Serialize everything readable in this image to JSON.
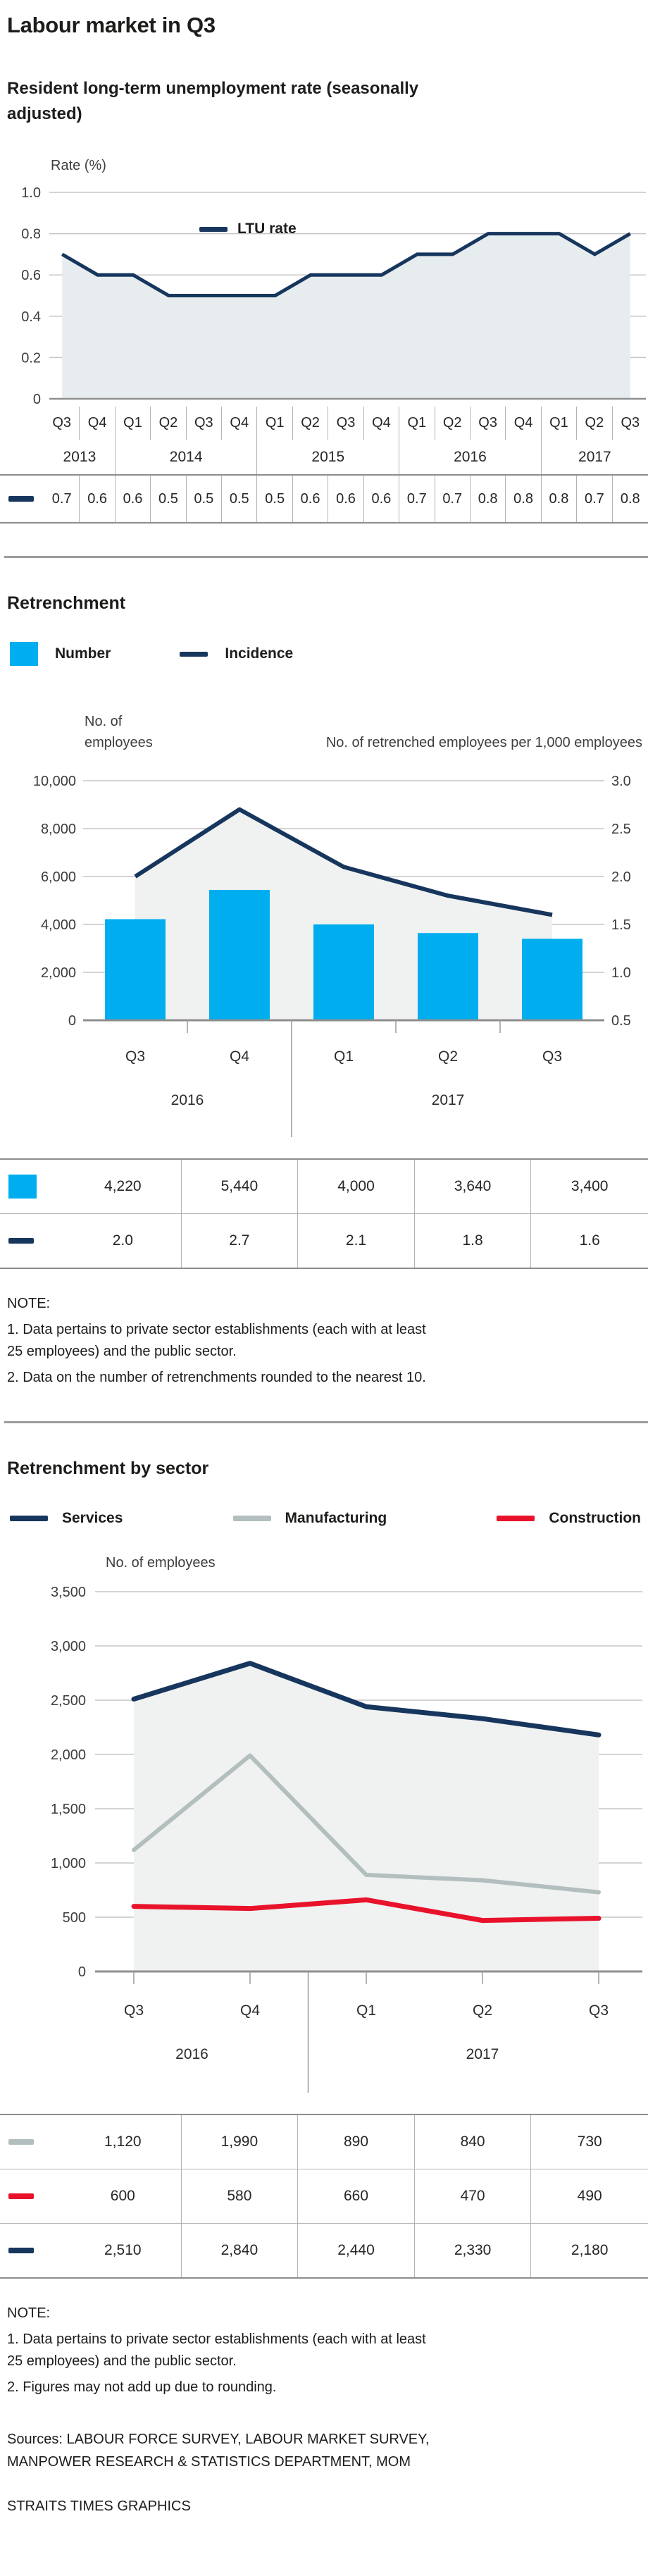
{
  "page": {
    "title": "Labour market in Q3"
  },
  "colors": {
    "navy": "#17365d",
    "cyan": "#00aeef",
    "red": "#e8132b",
    "manufacturing_gray": "#b3bebe",
    "area_fill_blue": "#e7ecef",
    "area_fill_gray": "#f0f1f1",
    "gridline": "#c6c6c6",
    "axis": "#8f8f8f"
  },
  "chart_data": [
    {
      "type": "area",
      "title": "Resident long-term unemployment rate (seasonally adjusted)",
      "ylabel": "Rate (%)",
      "ylim": [
        0,
        1.0
      ],
      "yticks": [
        {
          "label": "1.0",
          "v": 1.0
        },
        {
          "label": "0.8",
          "v": 0.8
        },
        {
          "label": "0.6",
          "v": 0.6
        },
        {
          "label": "0.4",
          "v": 0.4
        },
        {
          "label": "0.2",
          "v": 0.2
        },
        {
          "label": "0",
          "v": 0
        }
      ],
      "grid": true,
      "legend_position": "top-inside",
      "categories": [
        "Q3",
        "Q4",
        "Q1",
        "Q2",
        "Q3",
        "Q4",
        "Q1",
        "Q2",
        "Q3",
        "Q4",
        "Q1",
        "Q2",
        "Q3",
        "Q4",
        "Q1",
        "Q2",
        "Q3"
      ],
      "year_groups": [
        {
          "label": "2013",
          "span": 2
        },
        {
          "label": "2014",
          "span": 4
        },
        {
          "label": "2015",
          "span": 4
        },
        {
          "label": "2016",
          "span": 4
        },
        {
          "label": "2017",
          "span": 3
        }
      ],
      "series": [
        {
          "name": "LTU rate",
          "color": "#17365d",
          "values": [
            0.7,
            0.6,
            0.6,
            0.5,
            0.5,
            0.5,
            0.5,
            0.6,
            0.6,
            0.6,
            0.7,
            0.7,
            0.8,
            0.8,
            0.8,
            0.7,
            0.8
          ],
          "display": [
            "0.7",
            "0.6",
            "0.6",
            "0.5",
            "0.5",
            "0.5",
            "0.5",
            "0.6",
            "0.6",
            "0.6",
            "0.7",
            "0.7",
            "0.8",
            "0.8",
            "0.8",
            "0.7",
            "0.8"
          ]
        }
      ],
      "fill_color": "#e7ecef"
    },
    {
      "type": "bar+line",
      "title": "Retrenchment",
      "ylabel_left": "No. of employees",
      "ylabel_right": "No. of retrenched employees per 1,000 employees",
      "ylim_left": [
        0,
        10000
      ],
      "ylim_right": [
        0.5,
        3.0
      ],
      "yticks_left": [
        {
          "label": "10,000",
          "v": 10000
        },
        {
          "label": "8,000",
          "v": 8000
        },
        {
          "label": "6,000",
          "v": 6000
        },
        {
          "label": "4,000",
          "v": 4000
        },
        {
          "label": "2,000",
          "v": 2000
        },
        {
          "label": "0",
          "v": 0
        }
      ],
      "yticks_right": [
        "3.0",
        "2.5",
        "2.0",
        "1.5",
        "1.0",
        "0.5"
      ],
      "grid": true,
      "categories": [
        "Q3",
        "Q4",
        "Q1",
        "Q2",
        "Q3"
      ],
      "year_groups": [
        {
          "label": "2016",
          "span": 2
        },
        {
          "label": "2017",
          "span": 3
        }
      ],
      "series": [
        {
          "name": "Number",
          "kind": "bar",
          "axis": "left",
          "color": "#00aeef",
          "values": [
            4220,
            5440,
            4000,
            3640,
            3400
          ],
          "display": [
            "4,220",
            "5,440",
            "4,000",
            "3,640",
            "3,400"
          ]
        },
        {
          "name": "Incidence",
          "kind": "line",
          "axis": "right",
          "color": "#17365d",
          "values": [
            2.0,
            2.7,
            2.1,
            1.8,
            1.6
          ],
          "display": [
            "2.0",
            "2.7",
            "2.1",
            "1.8",
            "1.6"
          ]
        }
      ],
      "fill_color": "#f0f1f1",
      "note": {
        "title": "NOTE:",
        "line1": "1. Data pertains to private sector establishments (each with at least 25 employees) and the public sector.",
        "line2": "2. Data on the number of retrenchments rounded to the nearest 10."
      }
    },
    {
      "type": "line",
      "title": "Retrenchment by sector",
      "ylabel": "No. of employees",
      "ylim": [
        0,
        3500
      ],
      "yticks": [
        {
          "label": "3,500",
          "v": 3500
        },
        {
          "label": "3,000",
          "v": 3000
        },
        {
          "label": "2,500",
          "v": 2500
        },
        {
          "label": "2,000",
          "v": 2000
        },
        {
          "label": "1,500",
          "v": 1500
        },
        {
          "label": "1,000",
          "v": 1000
        },
        {
          "label": "500",
          "v": 500
        },
        {
          "label": "0",
          "v": 0
        }
      ],
      "grid": true,
      "categories": [
        "Q3",
        "Q4",
        "Q1",
        "Q2",
        "Q3"
      ],
      "year_groups": [
        {
          "label": "2016",
          "span": 2
        },
        {
          "label": "2017",
          "span": 3
        }
      ],
      "series": [
        {
          "name": "Services",
          "color": "#17365d",
          "area_fill": true,
          "values": [
            2510,
            2840,
            2440,
            2330,
            2180
          ],
          "display": [
            "2,510",
            "2,840",
            "2,440",
            "2,330",
            "2,180"
          ]
        },
        {
          "name": "Manufacturing",
          "color": "#b3bebe",
          "values": [
            1120,
            1990,
            890,
            840,
            730
          ],
          "display": [
            "1,120",
            "1,990",
            "890",
            "840",
            "730"
          ]
        },
        {
          "name": "Construction",
          "color": "#e8132b",
          "values": [
            600,
            580,
            660,
            470,
            490
          ],
          "display": [
            "600",
            "580",
            "660",
            "470",
            "490"
          ]
        }
      ],
      "table_row_order": [
        1,
        2,
        0
      ],
      "fill_color": "#f0f1f1",
      "note": {
        "title": "NOTE:",
        "line1": "1. Data pertains to private sector establishments (each with at least 25 employees) and the public sector.",
        "line2": "2. Figures may not add up due to rounding."
      }
    }
  ],
  "footer": {
    "sources": "Sources: LABOUR FORCE SURVEY, LABOUR MARKET SURVEY, MANPOWER RESEARCH & STATISTICS DEPARTMENT, MOM",
    "credit": "STRAITS TIMES GRAPHICS"
  }
}
